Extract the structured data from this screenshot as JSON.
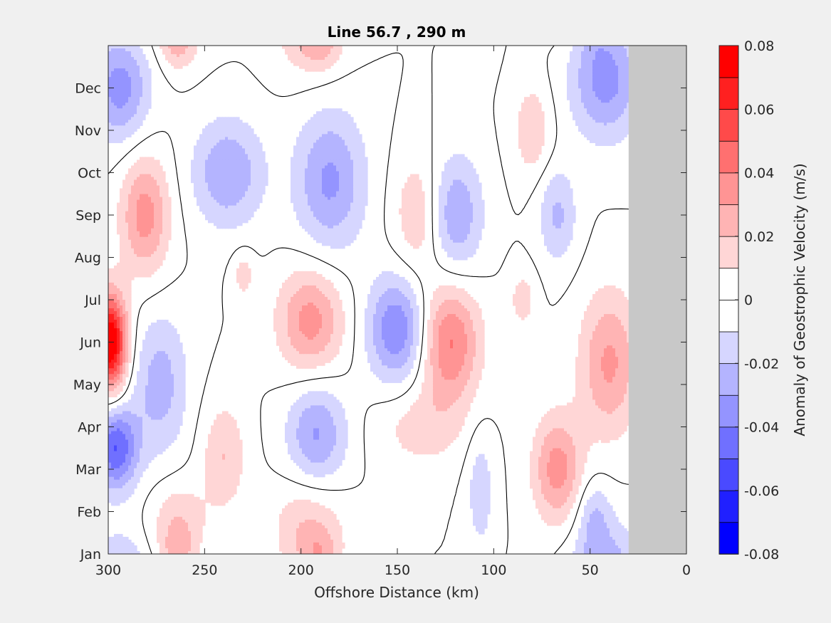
{
  "chart_data": {
    "type": "heatmap",
    "title": "Line 56.7 , 290 m",
    "xlabel": "Offshore Distance (km)",
    "ylabel": "",
    "xlim": [
      300,
      0
    ],
    "x_reversed": true,
    "xticks": [
      "300",
      "250",
      "200",
      "150",
      "100",
      "50",
      "0"
    ],
    "xtick_values": [
      300,
      250,
      200,
      150,
      100,
      50,
      0
    ],
    "yticks": [
      "Jan",
      "Feb",
      "Mar",
      "Apr",
      "May",
      "Jun",
      "Jul",
      "Aug",
      "Sep",
      "Oct",
      "Nov",
      "Dec"
    ],
    "ytick_values": [
      1,
      2,
      3,
      4,
      5,
      6,
      7,
      8,
      9,
      10,
      11,
      12
    ],
    "ylim": [
      1,
      13
    ],
    "no_data_region_km": [
      0,
      30
    ],
    "no_data_color": "#c8c8c8",
    "zero_contour_color": "#000000",
    "colorbar": {
      "label": "Anomaly of Geostrophic Velocity (m/s)",
      "range": [
        -0.08,
        0.08
      ],
      "ticks": [
        "0.08",
        "0.06",
        "0.04",
        "0.02",
        "0",
        "-0.02",
        "-0.04",
        "-0.06",
        "-0.08"
      ],
      "tick_values": [
        0.08,
        0.06,
        0.04,
        0.02,
        0,
        -0.02,
        -0.04,
        -0.06,
        -0.08
      ],
      "colors": [
        "#0000ff",
        "#2020ff",
        "#4a4aff",
        "#7070ff",
        "#9494ff",
        "#b4b4ff",
        "#d6d6ff",
        "#ffffff",
        "#ffffff",
        "#ffd6d6",
        "#ffb4b4",
        "#ff9494",
        "#ff7070",
        "#ff4a4a",
        "#ff2020",
        "#ff0000"
      ]
    },
    "anomaly_features": [
      {
        "x_km": 299,
        "month": 6.0,
        "sx": 6,
        "sy": 0.8,
        "amp": 0.085
      },
      {
        "x_km": 296,
        "month": 3.5,
        "sx": 8,
        "sy": 0.7,
        "amp": -0.05
      },
      {
        "x_km": 294,
        "month": 12.0,
        "sx": 11,
        "sy": 0.9,
        "amp": -0.035
      },
      {
        "x_km": 281,
        "month": 9.0,
        "sx": 9,
        "sy": 1.0,
        "amp": 0.035
      },
      {
        "x_km": 273,
        "month": 5.0,
        "sx": 10,
        "sy": 1.2,
        "amp": -0.025
      },
      {
        "x_km": 238,
        "month": 10.0,
        "sx": 13,
        "sy": 0.9,
        "amp": -0.03
      },
      {
        "x_km": 195,
        "month": 6.5,
        "sx": 12,
        "sy": 0.9,
        "amp": 0.035
      },
      {
        "x_km": 185,
        "month": 9.8,
        "sx": 13,
        "sy": 1.2,
        "amp": -0.032
      },
      {
        "x_km": 192,
        "month": 3.8,
        "sx": 11,
        "sy": 0.9,
        "amp": -0.032
      },
      {
        "x_km": 150,
        "month": 6.3,
        "sx": 11,
        "sy": 0.9,
        "amp": -0.04
      },
      {
        "x_km": 123,
        "month": 6.0,
        "sx": 11,
        "sy": 1.0,
        "amp": 0.042
      },
      {
        "x_km": 139,
        "month": 9.0,
        "sx": 9,
        "sy": 1.0,
        "amp": 0.02
      },
      {
        "x_km": 120,
        "month": 9.0,
        "sx": 10,
        "sy": 1.0,
        "amp": -0.03
      },
      {
        "x_km": 138,
        "month": 4.0,
        "sx": 16,
        "sy": 0.7,
        "amp": 0.015
      },
      {
        "x_km": 67,
        "month": 3.0,
        "sx": 9,
        "sy": 0.9,
        "amp": 0.035
      },
      {
        "x_km": 40,
        "month": 5.5,
        "sx": 11,
        "sy": 1.2,
        "amp": 0.032
      },
      {
        "x_km": 42,
        "month": 12.2,
        "sx": 13,
        "sy": 1.0,
        "amp": -0.035
      },
      {
        "x_km": 80,
        "month": 11.0,
        "sx": 7,
        "sy": 0.8,
        "amp": 0.018
      },
      {
        "x_km": 67,
        "month": 9.0,
        "sx": 7,
        "sy": 0.8,
        "amp": -0.022
      },
      {
        "x_km": 196,
        "month": 1.6,
        "sx": 13,
        "sy": 0.9,
        "amp": 0.022
      },
      {
        "x_km": 240,
        "month": 3.3,
        "sx": 8,
        "sy": 0.9,
        "amp": 0.02
      },
      {
        "x_km": 264,
        "month": 1.7,
        "sx": 10,
        "sy": 0.7,
        "amp": 0.02
      },
      {
        "x_km": 107,
        "month": 2.5,
        "sx": 5,
        "sy": 1.0,
        "amp": -0.017
      },
      {
        "x_km": 230,
        "month": 7.6,
        "sx": 4,
        "sy": 0.4,
        "amp": 0.015
      },
      {
        "x_km": 264,
        "month": 13.0,
        "sx": 6,
        "sy": 0.4,
        "amp": 0.015
      },
      {
        "x_km": 190,
        "month": 13.0,
        "sx": 7,
        "sy": 0.4,
        "amp": 0.015
      },
      {
        "x_km": 85,
        "month": 7.0,
        "sx": 5,
        "sy": 0.5,
        "amp": 0.015
      },
      {
        "x_km": 48,
        "month": 1.9,
        "sx": 6,
        "sy": 0.6,
        "amp": -0.017
      }
    ]
  }
}
